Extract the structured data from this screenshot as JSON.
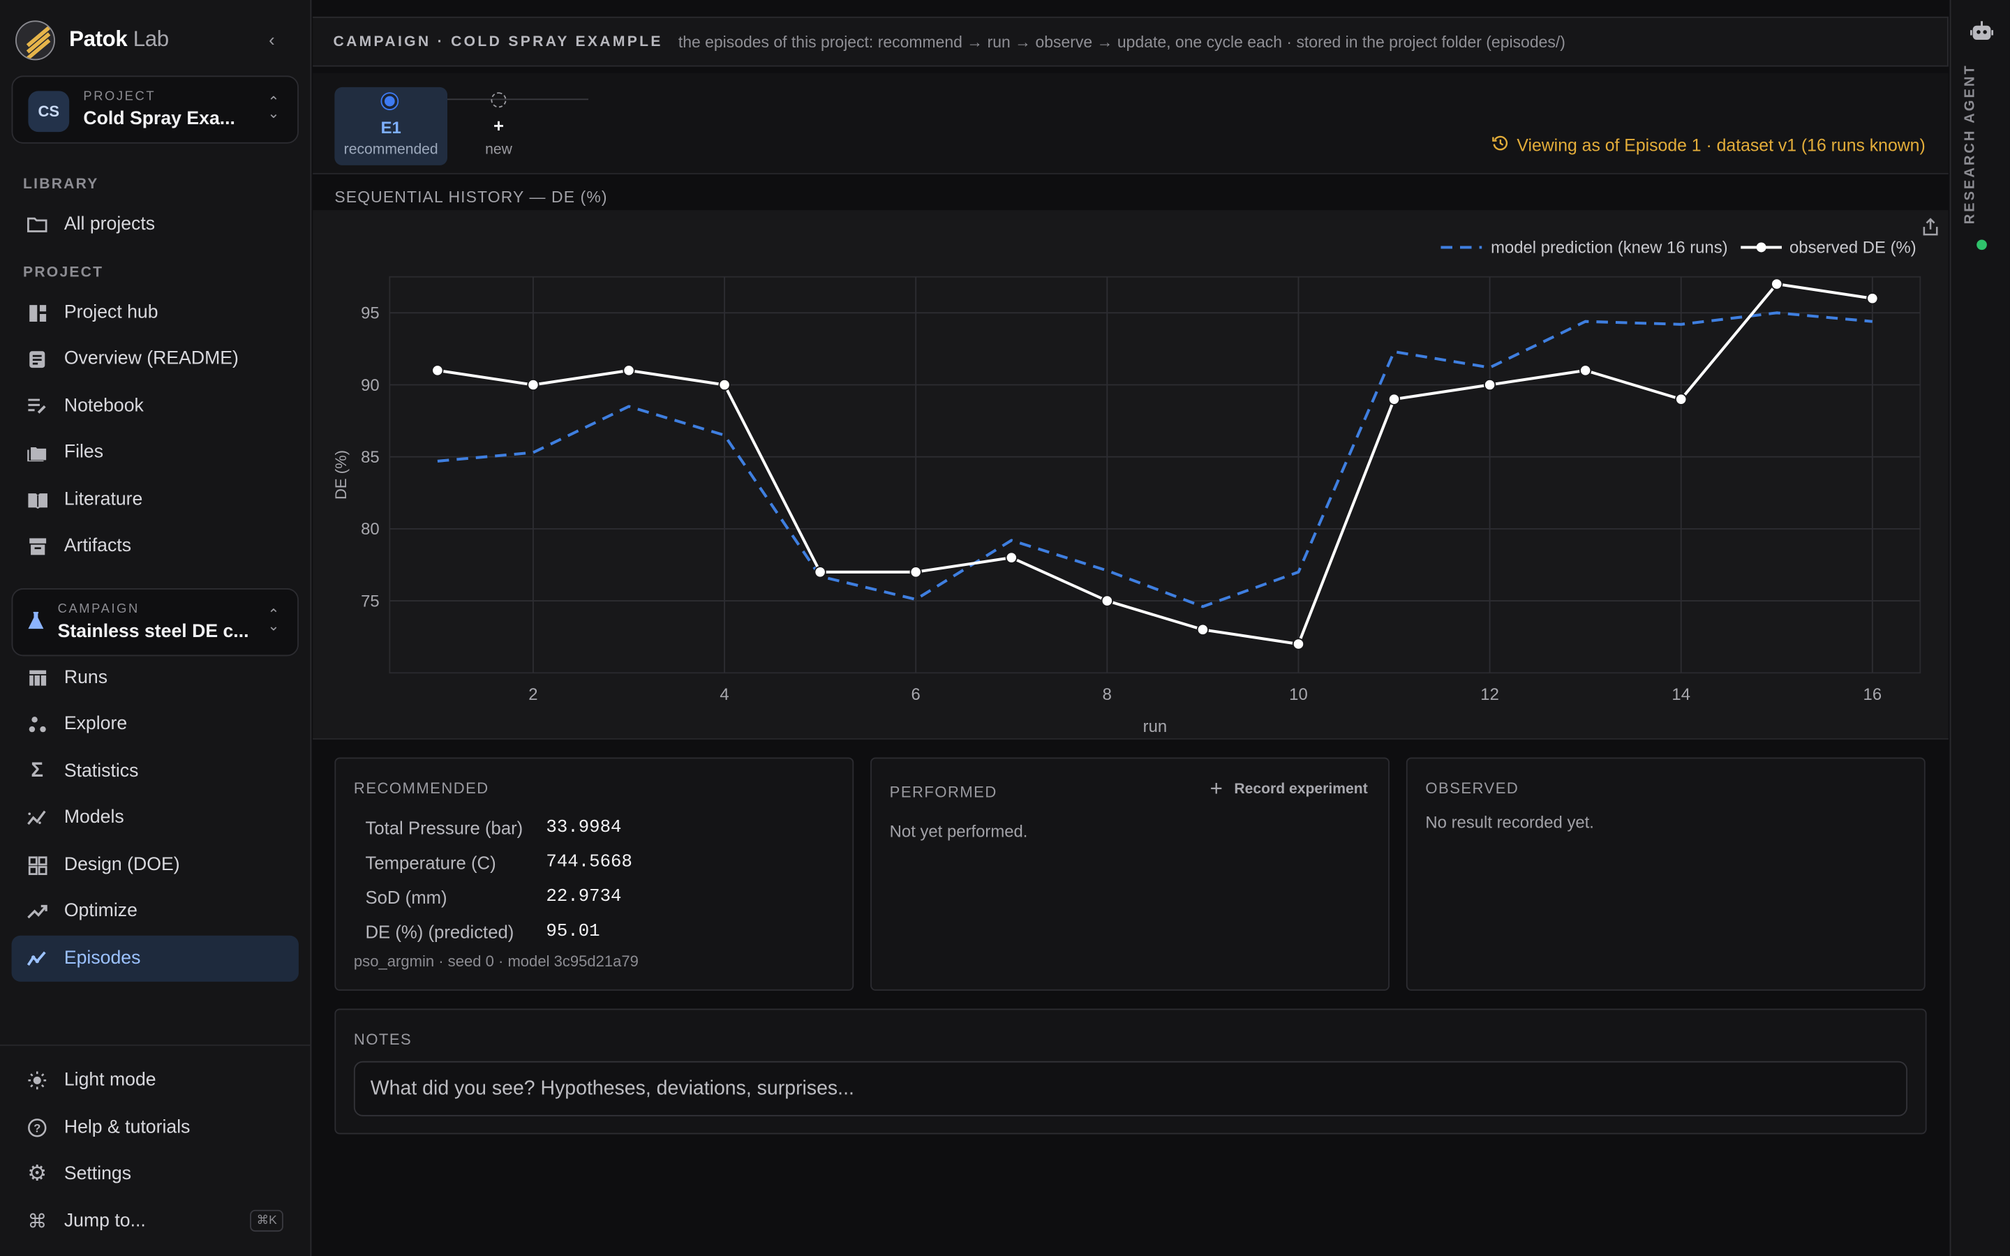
{
  "brand": {
    "name": "Patok",
    "suffix": "Lab"
  },
  "project": {
    "label": "PROJECT",
    "initials": "CS",
    "name": "Cold Spray Exa..."
  },
  "campaign": {
    "label": "CAMPAIGN",
    "name": "Stainless steel DE c..."
  },
  "sidebar": {
    "library_label": "LIBRARY",
    "project_label": "PROJECT",
    "library": [
      {
        "label": "All projects",
        "icon": "folder-icon"
      }
    ],
    "project_items": [
      {
        "label": "Project hub",
        "icon": "hub-icon"
      },
      {
        "label": "Overview (README)",
        "icon": "document-icon"
      },
      {
        "label": "Notebook",
        "icon": "notebook-icon"
      },
      {
        "label": "Files",
        "icon": "files-icon"
      },
      {
        "label": "Literature",
        "icon": "book-icon"
      },
      {
        "label": "Artifacts",
        "icon": "archive-icon"
      }
    ],
    "campaign_items": [
      {
        "label": "Runs",
        "icon": "table-icon"
      },
      {
        "label": "Explore",
        "icon": "scatter-icon"
      },
      {
        "label": "Statistics",
        "icon": "sigma-icon"
      },
      {
        "label": "Models",
        "icon": "model-icon"
      },
      {
        "label": "Design (DOE)",
        "icon": "grid-icon"
      },
      {
        "label": "Optimize",
        "icon": "trend-icon"
      },
      {
        "label": "Episodes",
        "icon": "episodes-icon",
        "active": true
      }
    ],
    "footer": [
      {
        "label": "Light mode",
        "icon": "sun-icon"
      },
      {
        "label": "Help & tutorials",
        "icon": "help-icon"
      },
      {
        "label": "Settings",
        "icon": "gear-icon"
      },
      {
        "label": "Jump to...",
        "icon": "command-icon",
        "shortcut": "⌘K"
      }
    ]
  },
  "header": {
    "title": "CAMPAIGN · COLD SPRAY EXAMPLE",
    "subtitle": "the episodes of this project: recommend → run → observe → update, one cycle each · stored in the project folder (episodes/)"
  },
  "episodes": {
    "items": [
      {
        "name": "E1",
        "status": "recommended"
      }
    ],
    "new": {
      "plus": "+",
      "label": "new"
    },
    "viewing": "Viewing as of Episode 1 · dataset v1 (16 runs known)"
  },
  "chart_title": "SEQUENTIAL HISTORY — DE (%)",
  "chart_data": {
    "type": "line",
    "title": "SEQUENTIAL HISTORY — DE (%)",
    "xlabel": "run",
    "ylabel": "DE (%)",
    "xlim": [
      0.5,
      16.5
    ],
    "ylim": [
      70,
      97.5
    ],
    "xticks": [
      2,
      4,
      6,
      8,
      10,
      12,
      14,
      16
    ],
    "yticks": [
      75,
      80,
      85,
      90,
      95
    ],
    "grid": true,
    "legend_position": "top-right",
    "x": [
      1,
      2,
      3,
      4,
      5,
      6,
      7,
      8,
      9,
      10,
      11,
      12,
      13,
      14,
      15,
      16
    ],
    "series": [
      {
        "name": "model prediction (knew 16 runs)",
        "style": "dashed",
        "color": "#3f7fe0",
        "values": [
          84.7,
          85.3,
          88.5,
          86.5,
          76.7,
          75.1,
          79.2,
          77.1,
          74.6,
          77.0,
          92.3,
          91.2,
          94.4,
          94.2,
          95.0,
          94.4
        ]
      },
      {
        "name": "observed DE (%)",
        "style": "solid-markers",
        "color": "#ffffff",
        "values": [
          91,
          90,
          91,
          90,
          77,
          77,
          78,
          75,
          73,
          72,
          89,
          90,
          91,
          89,
          97,
          96
        ]
      }
    ]
  },
  "recommended": {
    "title": "RECOMMENDED",
    "rows": [
      {
        "key": "Total Pressure (bar)",
        "value": "33.9984"
      },
      {
        "key": "Temperature (C)",
        "value": "744.5668"
      },
      {
        "key": "SoD (mm)",
        "value": "22.9734"
      },
      {
        "key": "DE (%) (predicted)",
        "value": "95.01"
      }
    ],
    "meta": "pso_argmin · seed 0 · model 3c95d21a79"
  },
  "performed": {
    "title": "PERFORMED",
    "button": "Record experiment",
    "empty": "Not yet performed."
  },
  "observed": {
    "title": "OBSERVED",
    "empty": "No result recorded yet."
  },
  "notes": {
    "title": "NOTES",
    "placeholder": "What did you see? Hypotheses, deviations, surprises..."
  },
  "rail": {
    "label": "RESEARCH AGENT"
  }
}
